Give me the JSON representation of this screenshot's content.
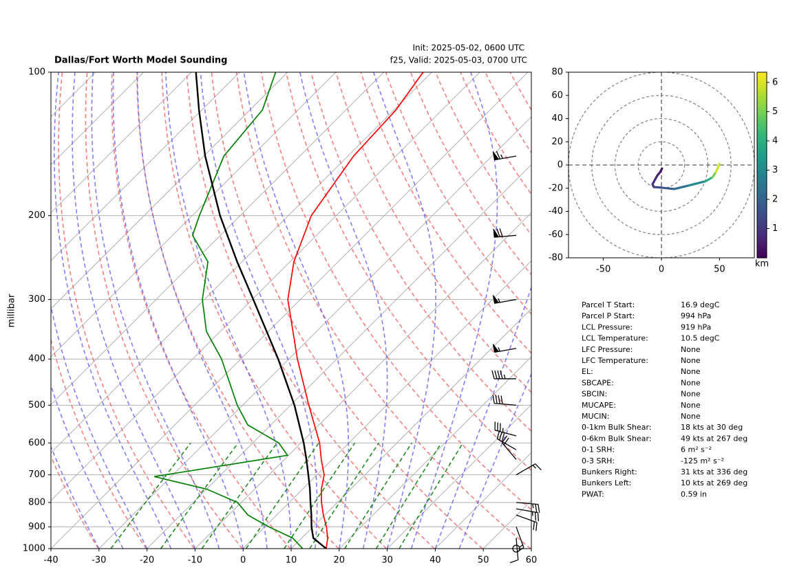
{
  "chart_data": [
    {
      "type": "skewt",
      "title": "Dallas/Fort Worth Model Sounding",
      "subtitle": [
        "Init: 2025-05-02, 0600 UTC",
        "f25, Valid: 2025-05-03, 0700 UTC"
      ],
      "ylabel": "millibar",
      "xlim": [
        -40,
        60
      ],
      "xticks": [
        -40,
        -30,
        -20,
        -10,
        0,
        10,
        20,
        30,
        40,
        50,
        60
      ],
      "ylim": [
        1000,
        100
      ],
      "yticks": [
        1000,
        900,
        800,
        700,
        600,
        500,
        400,
        300,
        200,
        100
      ],
      "log_y": true,
      "grid": true,
      "series": [
        {
          "color": "#ff0000",
          "pressure": [
            1000,
            950,
            900,
            850,
            800,
            750,
            700,
            650,
            600,
            500,
            400,
            300,
            250,
            200,
            150,
            120,
            100
          ],
          "values": [
            17.3,
            15.4,
            12.8,
            9.7,
            6.7,
            3.9,
            1.5,
            -2.3,
            -6.1,
            -16.2,
            -28.2,
            -42.6,
            -49.2,
            -55.2,
            -58.8,
            -59.6,
            -61.8
          ]
        },
        {
          "color": "#008000",
          "pressure": [
            1000,
            950,
            900,
            850,
            800,
            750,
            706,
            637,
            600,
            550,
            500,
            400,
            350,
            300,
            250,
            220,
            200,
            150,
            120,
            100
          ],
          "values": [
            12.4,
            8.1,
            0.8,
            -6.0,
            -10.8,
            -20.0,
            -33.5,
            -10.2,
            -14.6,
            -24.8,
            -31.1,
            -44.0,
            -52.9,
            -60.4,
            -67.1,
            -75.8,
            -78.5,
            -85.8,
            -87.4,
            -92.5
          ]
        },
        {
          "color": "#000000",
          "pressure": [
            1000,
            950,
            900,
            850,
            800,
            750,
            700,
            650,
            600,
            500,
            400,
            300,
            250,
            200,
            150,
            120,
            100
          ],
          "values": [
            17.3,
            12.4,
            9.7,
            7.2,
            4.4,
            1.5,
            -1.8,
            -5.4,
            -9.4,
            -19.2,
            -32.2,
            -49.8,
            -61.0,
            -74.2,
            -89.7,
            -100.6,
            -109.1
          ]
        }
      ],
      "wind": {
        "pressure": [
          1000,
          950,
          900,
          850,
          825,
          800,
          700,
          650,
          620,
          580,
          500,
          440,
          380,
          300,
          220,
          150
        ],
        "speed": [
          0,
          10,
          15,
          20,
          25,
          25,
          15,
          20,
          30,
          35,
          40,
          45,
          55,
          55,
          70,
          65
        ],
        "direction": [
          0,
          175,
          160,
          110,
          100,
          95,
          60,
          320,
          300,
          285,
          275,
          270,
          260,
          260,
          265,
          260
        ]
      }
    },
    {
      "type": "hodograph",
      "xlim": [
        -80,
        80
      ],
      "xticks": [
        -50,
        0,
        50
      ],
      "ylim": [
        -80,
        80
      ],
      "yticks": [
        -80,
        -60,
        -40,
        -20,
        0,
        20,
        40,
        60,
        80
      ],
      "u": [
        0.5,
        -1,
        -3.5,
        -7.7,
        -6.5,
        0,
        11,
        23,
        38,
        44,
        47,
        50
      ],
      "v": [
        -3,
        -6,
        -9,
        -16.6,
        -19,
        -19.5,
        -20.7,
        -17.8,
        -14,
        -10.6,
        -6,
        1
      ],
      "height": [
        0,
        0.3,
        0.6,
        0.9,
        1.2,
        1.5,
        2,
        2.5,
        3.5,
        4.5,
        5.5,
        6.3
      ],
      "colorbar": {
        "label": "km",
        "clim": [
          0,
          6.35
        ],
        "ticks": [
          1,
          2,
          3,
          4,
          5,
          6
        ]
      }
    }
  ],
  "parameters": {
    "rows": [
      [
        "Parcel T Start:",
        "16.9 degC"
      ],
      [
        "Parcel P Start:",
        "994 hPa"
      ],
      [
        "LCL Pressure:",
        "919 hPa"
      ],
      [
        "LCL Temperature:",
        "10.5 degC"
      ],
      [
        "LFC Pressure:",
        "None"
      ],
      [
        "LFC Temperature:",
        "None"
      ],
      [
        "EL:",
        "None"
      ],
      [
        "SBCAPE:",
        "None"
      ],
      [
        "SBCIN:",
        "None"
      ],
      [
        "MUCAPE:",
        "None"
      ],
      [
        "MUCIN:",
        "None"
      ],
      [
        "0-1km Bulk Shear:",
        "18 kts at 30 deg"
      ],
      [
        "0-6km Bulk Shear:",
        "49 kts at 267 deg"
      ],
      [
        "0-1 SRH:",
        "6 m² s⁻²"
      ],
      [
        "0-3 SRH:",
        "-125 m² s⁻²"
      ],
      [
        "Bunkers Right:",
        "31 kts at 336 deg"
      ],
      [
        "Bunkers Left:",
        "10 kts at 269 deg"
      ],
      [
        "PWAT:",
        "0.59 in"
      ]
    ]
  }
}
